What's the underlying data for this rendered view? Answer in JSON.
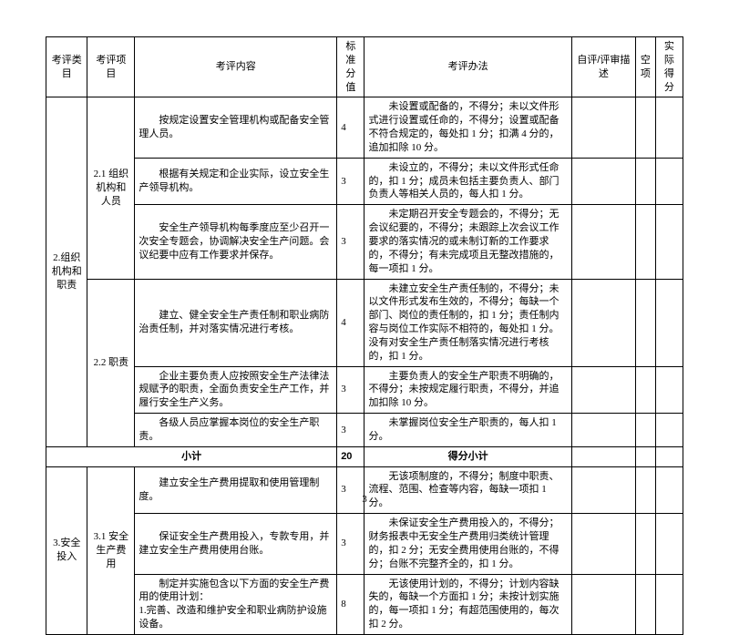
{
  "header": {
    "col_category": "考评类目",
    "col_item": "考评项目",
    "col_content": "考评内容",
    "col_score": "标准分值",
    "col_method": "考评办法",
    "col_self": "自评/评审描述",
    "col_empty": "空项",
    "col_actual": "实际得分"
  },
  "cat2": {
    "label": "2.组织机构和职责",
    "item1": {
      "label": "2.1 组织机构和人员",
      "row1": {
        "content": "按规定设置安全管理机构或配备安全管理人员。",
        "score": "4",
        "method": "未设置或配备的，不得分；未以文件形式进行设置或任命的，不得分；设置或配备不符合规定的，每处扣 1 分；扣满 4 分的，追加扣除 10 分。"
      },
      "row2": {
        "content": "根据有关规定和企业实际，设立安全生产领导机构。",
        "score": "3",
        "method": "未设立的，不得分；未以文件形式任命的，扣 1 分；成员未包括主要负责人、部门负责人等相关人员的，每人扣 1 分。"
      },
      "row3": {
        "content": "安全生产领导机构每季度应至少召开一次安全专题会，协调解决安全生产问题。会议纪要中应有工作要求并保存。",
        "score": "3",
        "method": "未定期召开安全专题会的，不得分；无会议纪要的，不得分；未跟踪上次会议工作要求的落实情况的或未制订新的工作要求的，不得分；有未完成项且无整改措施的，每一项扣 1 分。"
      }
    },
    "item2": {
      "label": "2.2 职责",
      "row1": {
        "content": "建立、健全安全生产责任制和职业病防治责任制，并对落实情况进行考核。",
        "score": "4",
        "method": "未建立安全生产责任制的，不得分；未以文件形式发布生效的，不得分；每缺一个部门、岗位的责任制的，扣 1 分；责任制内容与岗位工作实际不相符的，每处扣 1 分。没有对安全生产责任制落实情况进行考核的，扣 1 分。"
      },
      "row2": {
        "content": "企业主要负责人应按照安全生产法律法规赋予的职责，全面负责安全生产工作，并履行安全生产义务。",
        "score": "3",
        "method": "主要负责人的安全生产职责不明确的，不得分；未按规定履行职责，不得分，并追加扣除 10 分。"
      },
      "row3": {
        "content": "各级人员应掌握本岗位的安全生产职责。",
        "score": "3",
        "method": "未掌握岗位安全生产职责的，每人扣 1 分。"
      }
    },
    "subtotal": {
      "label": "小计",
      "score": "20",
      "method": "得分小计"
    }
  },
  "cat3": {
    "label": "3.安全投入",
    "item1": {
      "label": "3.1 安全生产费用",
      "row1": {
        "content": "建立安全生产费用提取和使用管理制度。",
        "score": "3",
        "method": "无该项制度的，不得分；制度中职责、流程、范围、检查等内容，每缺一项扣 1 分。"
      },
      "row2": {
        "content": "保证安全生产费用投入，专款专用，并建立安全生产费用使用台账。",
        "score": "3",
        "method": "未保证安全生产费用投入的，不得分；财务报表中无安全生产费用归类统计管理的，扣 2 分；无安全费用使用台账的，不得分；台账不完整齐全的，扣 1 分。"
      },
      "row3": {
        "content": "制定并实施包含以下方面的安全生产费用的使用计划：\n1.完善、改造和维护安全和职业病防护设施设备。",
        "score": "8",
        "method": "无该使用计划的，不得分；计划内容缺失的，每缺一个方面扣 1 分；未按计划实施的，每一项扣 1 分；有超范围使用的，每次扣 2 分。"
      }
    }
  },
  "pageNumber": "3"
}
